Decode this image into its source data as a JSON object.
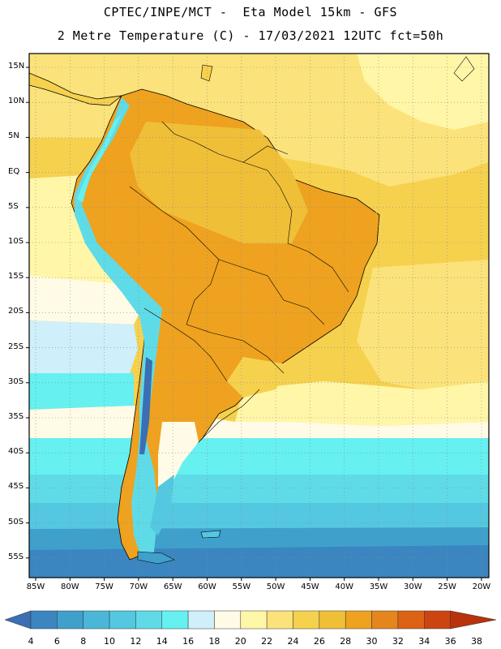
{
  "header": {
    "line1": "CPTEC/INPE/MCT -  Eta Model 15km - GFS",
    "line2": "2 Metre Temperature (C) - 17/03/2021 12UTC fct=50h"
  },
  "map": {
    "lat_labels": [
      "15N",
      "10N",
      "5N",
      "EQ",
      "5S",
      "10S",
      "15S",
      "20S",
      "25S",
      "30S",
      "35S",
      "40S",
      "45S",
      "50S",
      "55S"
    ],
    "lon_labels": [
      "85W",
      "80W",
      "75W",
      "70W",
      "65W",
      "60W",
      "55W",
      "50W",
      "45W",
      "40W",
      "35W",
      "30W",
      "25W",
      "20W"
    ],
    "extent": {
      "lon_min": -86.5,
      "lon_max": -19.5,
      "lat_min": -58,
      "lat_max": 17
    }
  },
  "colorbar": {
    "labels": [
      "4",
      "6",
      "8",
      "10",
      "12",
      "14",
      "16",
      "18",
      "20",
      "22",
      "24",
      "26",
      "28",
      "30",
      "32",
      "34",
      "36",
      "38"
    ],
    "colors": [
      "#3a6fb3",
      "#3b86c1",
      "#3fa0cc",
      "#4ab7d8",
      "#54c8e0",
      "#5fdbe8",
      "#66f0f0",
      "#cfeffa",
      "#fffbe6",
      "#fff6a8",
      "#fbe27a",
      "#f6d14e",
      "#f0bf38",
      "#eea21f",
      "#e5851c",
      "#dc6314",
      "#cc4410",
      "#b8320c"
    ]
  }
}
